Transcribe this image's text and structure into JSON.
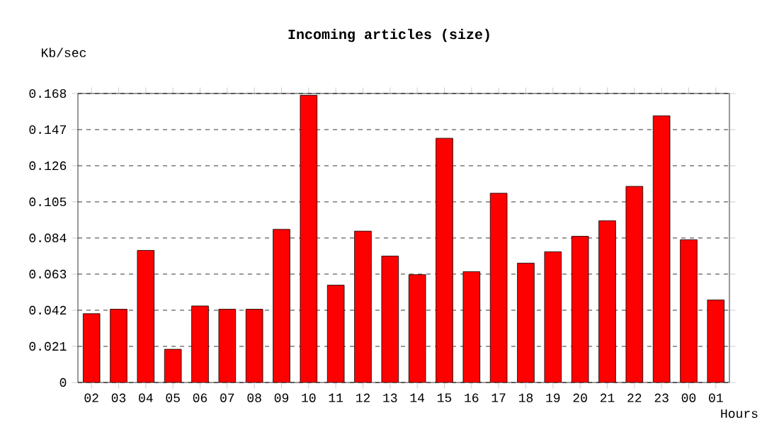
{
  "chart_data": {
    "type": "bar",
    "title": "Incoming articles (size)",
    "ylabel": "Kb/sec",
    "xlabel": "Hours",
    "categories": [
      "02",
      "03",
      "04",
      "05",
      "06",
      "07",
      "08",
      "09",
      "10",
      "11",
      "12",
      "13",
      "14",
      "15",
      "16",
      "17",
      "18",
      "19",
      "20",
      "21",
      "22",
      "23",
      "00",
      "01"
    ],
    "values": [
      0.04,
      0.0426,
      0.0768,
      0.0193,
      0.0445,
      0.0426,
      0.0426,
      0.089,
      0.167,
      0.0566,
      0.088,
      0.0735,
      0.0627,
      0.142,
      0.0644,
      0.11,
      0.0694,
      0.076,
      0.085,
      0.094,
      0.114,
      0.155,
      0.083,
      0.048
    ],
    "color": "#ff0000",
    "ylim": [
      0,
      0.168
    ],
    "yticks": [
      0,
      0.021,
      0.042,
      0.063,
      0.084,
      0.105,
      0.126,
      0.147,
      0.168
    ],
    "grid": "y",
    "legend": false
  }
}
